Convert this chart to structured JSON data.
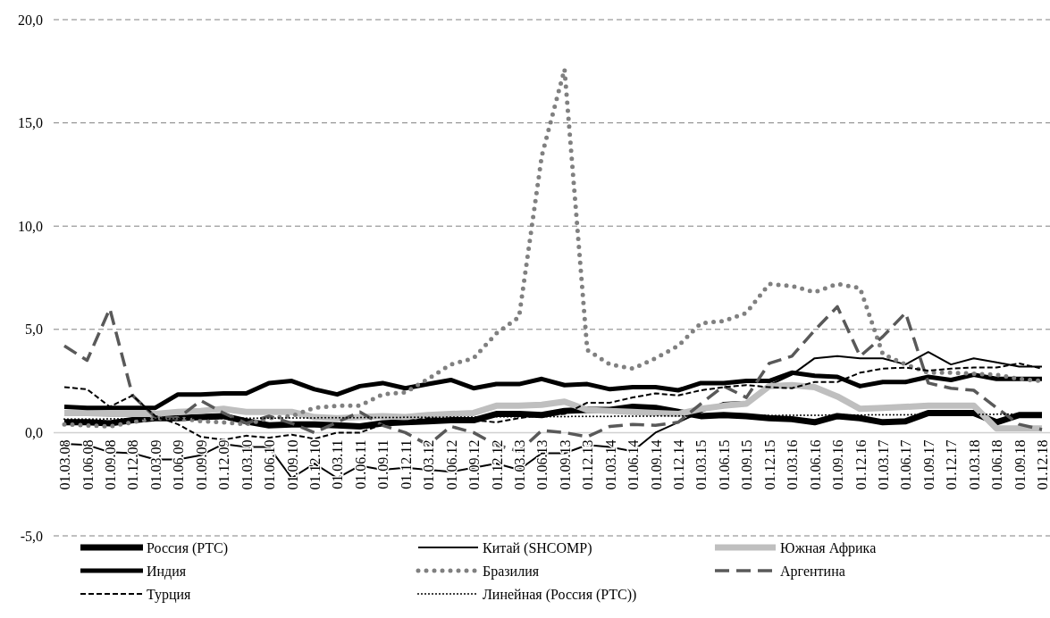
{
  "chart_data": {
    "type": "line",
    "categories": [
      "01.03.08",
      "01.06.08",
      "01.09.08",
      "01.12.08",
      "01.03.09",
      "01.06.09",
      "01.09.09",
      "01.12.09",
      "01.03.10",
      "01.06.10",
      "01.09.10",
      "01.12.10",
      "01.03.11",
      "01.06.11",
      "01.09.11",
      "01.12.11",
      "01.03.12",
      "01.06.12",
      "01.09.12",
      "01.12.12",
      "01.03.13",
      "01.06.13",
      "01.09.13",
      "01.12.13",
      "01.03.14",
      "01.06.14",
      "01.09.14",
      "01.12.14",
      "01.03.15",
      "01.06.15",
      "01.09.15",
      "01.12.15",
      "01.03.16",
      "01.06.16",
      "01.09.16",
      "01.12.16",
      "01.03.17",
      "01.06.17",
      "01.09.17",
      "01.12.17",
      "01.03.18",
      "01.06.18",
      "01.09.18",
      "01.12.18"
    ],
    "series": [
      {
        "name": "Россия (PTC)",
        "color": "#000000",
        "line_style": "solid",
        "values": [
          0.5,
          0.5,
          0.45,
          0.6,
          0.7,
          0.7,
          0.75,
          0.8,
          0.55,
          0.35,
          0.4,
          0.4,
          0.35,
          0.3,
          0.45,
          0.5,
          0.55,
          0.6,
          0.6,
          0.9,
          0.9,
          0.85,
          1.05,
          1.1,
          1.1,
          1.25,
          1.2,
          1.0,
          0.8,
          0.85,
          0.8,
          0.7,
          0.65,
          0.5,
          0.8,
          0.7,
          0.5,
          0.55,
          0.95,
          0.95,
          0.95,
          0.5,
          0.85,
          0.85
        ]
      },
      {
        "name": "Китай (SHCOMP)",
        "color": "#000000",
        "line_style": "solid",
        "values": [
          -0.55,
          -0.6,
          -0.95,
          -1.0,
          -1.3,
          -1.3,
          -1.1,
          -0.55,
          -0.7,
          -0.7,
          -2.2,
          -1.5,
          -2.2,
          -1.6,
          -1.8,
          -1.7,
          -1.8,
          -1.9,
          -1.7,
          -1.5,
          -1.8,
          -1.0,
          -1.0,
          -0.6,
          -0.7,
          -0.9,
          0.0,
          0.5,
          1.0,
          1.45,
          1.5,
          2.3,
          2.8,
          3.6,
          3.7,
          3.6,
          3.6,
          3.3,
          3.9,
          3.3,
          3.6,
          3.4,
          3.2,
          3.2
        ]
      },
      {
        "name": "Южная Африка",
        "color": "#bfbfbf",
        "line_style": "solid",
        "values": [
          0.95,
          0.95,
          0.9,
          0.9,
          0.9,
          1.0,
          1.05,
          1.15,
          1.0,
          1.0,
          1.0,
          0.75,
          0.7,
          0.75,
          0.8,
          0.75,
          0.85,
          0.9,
          0.95,
          1.3,
          1.3,
          1.35,
          1.5,
          1.1,
          1.05,
          1.0,
          0.95,
          0.9,
          1.15,
          1.3,
          1.4,
          2.25,
          2.3,
          2.2,
          1.75,
          1.15,
          1.2,
          1.25,
          1.3,
          1.3,
          1.3,
          0.2,
          0.2,
          0.2
        ]
      },
      {
        "name": "Индия",
        "color": "#000000",
        "line_style": "solid",
        "values": [
          1.25,
          1.2,
          1.2,
          1.2,
          1.2,
          1.85,
          1.85,
          1.9,
          1.9,
          2.4,
          2.5,
          2.1,
          1.85,
          2.25,
          2.4,
          2.15,
          2.35,
          2.55,
          2.15,
          2.35,
          2.35,
          2.6,
          2.3,
          2.35,
          2.1,
          2.2,
          2.2,
          2.05,
          2.4,
          2.4,
          2.5,
          2.5,
          2.9,
          2.75,
          2.7,
          2.25,
          2.45,
          2.45,
          2.7,
          2.55,
          2.8,
          2.6,
          2.6,
          2.6
        ]
      },
      {
        "name": "Бразилия",
        "color": "#808080",
        "line_style": "dotted",
        "values": [
          0.4,
          0.35,
          0.3,
          0.5,
          0.7,
          0.7,
          0.55,
          0.5,
          0.4,
          0.7,
          0.8,
          1.2,
          1.3,
          1.3,
          1.85,
          1.95,
          2.6,
          3.3,
          3.6,
          4.8,
          5.6,
          13.4,
          17.6,
          4.0,
          3.3,
          3.1,
          3.6,
          4.2,
          5.3,
          5.4,
          5.8,
          7.2,
          7.1,
          6.8,
          7.2,
          7.0,
          3.8,
          3.3,
          2.9,
          2.9,
          2.85,
          2.8,
          2.6,
          2.5
        ]
      },
      {
        "name": "Аргентина",
        "color": "#595959",
        "line_style": "dashed",
        "values": [
          4.2,
          3.5,
          6.0,
          1.8,
          0.75,
          0.7,
          1.55,
          0.95,
          0.45,
          0.8,
          0.45,
          0.0,
          0.5,
          1.0,
          0.35,
          0.0,
          -0.6,
          0.3,
          0.0,
          -0.6,
          -0.9,
          0.1,
          0.0,
          -0.2,
          0.3,
          0.4,
          0.35,
          0.5,
          1.4,
          2.25,
          1.7,
          3.35,
          3.7,
          4.95,
          6.1,
          3.7,
          4.65,
          5.8,
          2.4,
          2.15,
          2.05,
          1.2,
          0.4,
          0.15
        ]
      },
      {
        "name": "Турция",
        "color": "#000000",
        "line_style": "dashed",
        "values": [
          2.2,
          2.1,
          1.25,
          1.8,
          0.8,
          0.4,
          -0.2,
          -0.35,
          -0.15,
          -0.25,
          -0.1,
          -0.3,
          0.0,
          0.0,
          0.4,
          0.55,
          0.7,
          0.65,
          0.6,
          0.5,
          0.7,
          0.85,
          0.9,
          1.45,
          1.45,
          1.7,
          1.9,
          1.8,
          2.05,
          2.2,
          2.3,
          2.2,
          2.15,
          2.45,
          2.45,
          2.9,
          3.1,
          3.15,
          3.0,
          3.1,
          3.15,
          3.15,
          3.35,
          3.1
        ]
      },
      {
        "name": "Линейная (Россия (PTC))",
        "color": "#000000",
        "line_style": "dotted",
        "x": [
          "01.03.08",
          "01.12.18"
        ],
        "values": [
          0.65,
          0.9
        ]
      }
    ],
    "ylim": [
      -5,
      20
    ],
    "yticks": [
      {
        "value": -5,
        "label": "-5,0"
      },
      {
        "value": 0,
        "label": "0,0"
      },
      {
        "value": 5,
        "label": "5,0"
      },
      {
        "value": 10,
        "label": "10,0"
      },
      {
        "value": 15,
        "label": "15,0"
      },
      {
        "value": 20,
        "label": "20,0"
      }
    ],
    "grid": "y",
    "legend": "bottom",
    "marker": "none"
  }
}
